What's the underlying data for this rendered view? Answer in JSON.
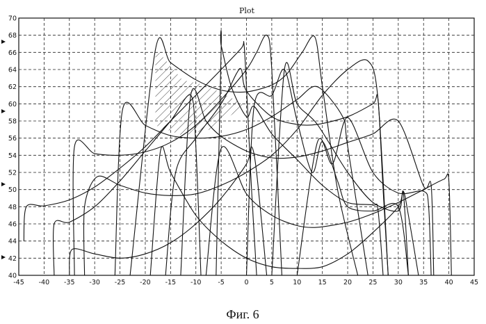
{
  "figure": {
    "caption": "Фиг. 6"
  },
  "chart_data": {
    "type": "line",
    "title": "Plot",
    "xlabel": "",
    "ylabel": "",
    "xlim": [
      -45,
      45
    ],
    "ylim": [
      40,
      70
    ],
    "x_ticks": [
      -45,
      -40,
      -35,
      -30,
      -25,
      -20,
      -15,
      -10,
      -5,
      0,
      5,
      10,
      15,
      20,
      25,
      30,
      35,
      40,
      45
    ],
    "y_ticks": [
      40,
      42,
      44,
      46,
      48,
      50,
      52,
      54,
      56,
      58,
      60,
      62,
      64,
      66,
      68,
      70
    ],
    "grid": true,
    "grid_style": "dashed",
    "line_color": "#111111",
    "hatched_region": {
      "x_range": [
        -18,
        0
      ],
      "y_range": [
        56,
        66.5
      ]
    },
    "series": [
      {
        "points": [
          [
            -44,
            44
          ],
          [
            -43.5,
            48
          ],
          [
            -40,
            48.1
          ],
          [
            -35,
            48.8
          ],
          [
            -30,
            50.3
          ],
          [
            -25,
            52.5
          ],
          [
            -20,
            55
          ],
          [
            -15,
            58
          ],
          [
            -10,
            61
          ],
          [
            -5,
            64
          ],
          [
            -1,
            66.5
          ],
          [
            -0.5,
            67
          ],
          [
            0,
            62
          ],
          [
            1,
            50
          ],
          [
            2,
            40
          ]
        ]
      },
      {
        "points": [
          [
            -38,
            40
          ],
          [
            -38,
            46
          ],
          [
            -35,
            46.2
          ],
          [
            -30,
            48
          ],
          [
            -25,
            51
          ],
          [
            -20,
            54.5
          ],
          [
            -15,
            58
          ],
          [
            -11,
            61
          ],
          [
            -10,
            55
          ],
          [
            -9,
            40
          ]
        ]
      },
      {
        "points": [
          [
            -35,
            40
          ],
          [
            -34.5,
            43
          ],
          [
            -30,
            42.5
          ],
          [
            -25,
            42
          ],
          [
            -20,
            42.5
          ],
          [
            -15,
            43.8
          ],
          [
            -10,
            46
          ],
          [
            -5,
            49
          ],
          [
            0,
            53
          ],
          [
            1,
            55
          ],
          [
            2,
            52
          ],
          [
            4,
            40
          ]
        ]
      },
      {
        "points": [
          [
            -34,
            40
          ],
          [
            -34,
            55
          ],
          [
            -30,
            54.2
          ],
          [
            -25,
            54
          ],
          [
            -20,
            54.4
          ],
          [
            -15,
            55.5
          ],
          [
            -10,
            57.5
          ],
          [
            -5,
            60.5
          ],
          [
            0,
            64
          ],
          [
            2,
            66
          ],
          [
            4,
            68
          ],
          [
            5,
            64
          ],
          [
            7,
            40
          ]
        ]
      },
      {
        "points": [
          [
            -32,
            40
          ],
          [
            -32,
            48
          ],
          [
            -29.5,
            51.5
          ],
          [
            -25,
            50.5
          ],
          [
            -20,
            49.6
          ],
          [
            -15,
            49.3
          ],
          [
            -10,
            49.5
          ],
          [
            -5,
            50.5
          ],
          [
            0,
            52
          ],
          [
            5,
            54
          ],
          [
            10,
            57
          ],
          [
            15,
            61
          ],
          [
            20,
            64
          ],
          [
            24,
            65
          ],
          [
            26,
            60.5
          ],
          [
            28,
            40
          ]
        ]
      },
      {
        "points": [
          [
            -26,
            40
          ],
          [
            -24.5,
            59.3
          ],
          [
            -20,
            57.5
          ],
          [
            -15,
            56.3
          ],
          [
            -10,
            56
          ],
          [
            -5,
            56.2
          ],
          [
            0,
            57
          ],
          [
            5,
            58.5
          ],
          [
            10,
            60.5
          ],
          [
            14,
            62
          ],
          [
            19,
            58.5
          ],
          [
            20,
            55
          ],
          [
            24,
            40
          ]
        ]
      },
      {
        "points": [
          [
            -23,
            40
          ],
          [
            -18,
            66.3
          ],
          [
            -15,
            64.8
          ],
          [
            -10,
            62.8
          ],
          [
            -5,
            61.6
          ],
          [
            0,
            61.4
          ],
          [
            5,
            62.2
          ],
          [
            8,
            63.5
          ],
          [
            11,
            66
          ],
          [
            13.5,
            67.8
          ],
          [
            15,
            62
          ],
          [
            18,
            50
          ],
          [
            22,
            40
          ]
        ]
      },
      {
        "points": [
          [
            -19,
            40
          ],
          [
            -17,
            54.5
          ],
          [
            -15,
            52
          ],
          [
            -10,
            47
          ],
          [
            -5,
            44
          ],
          [
            0,
            42
          ],
          [
            5,
            41
          ],
          [
            10,
            40.8
          ],
          [
            15,
            41
          ],
          [
            20,
            42.5
          ],
          [
            25,
            45
          ],
          [
            30,
            48
          ],
          [
            31,
            49.8
          ],
          [
            32,
            47
          ],
          [
            34,
            40
          ]
        ]
      },
      {
        "points": [
          [
            -16,
            40
          ],
          [
            -14,
            52
          ],
          [
            -10,
            56
          ],
          [
            -5,
            60
          ],
          [
            -2,
            63.5
          ],
          [
            -1,
            64
          ],
          [
            0,
            61.5
          ],
          [
            5,
            58.5
          ],
          [
            10,
            57.6
          ],
          [
            14,
            57.6
          ],
          [
            20,
            58.5
          ],
          [
            25,
            60
          ],
          [
            26,
            60.5
          ],
          [
            27,
            50
          ],
          [
            28,
            40
          ]
        ]
      },
      {
        "points": [
          [
            -13,
            40
          ],
          [
            -11,
            61
          ],
          [
            -8,
            58
          ],
          [
            -5,
            56.2
          ],
          [
            0,
            54.5
          ],
          [
            5,
            53.7
          ],
          [
            10,
            53.8
          ],
          [
            15,
            54.5
          ],
          [
            20,
            55.5
          ],
          [
            25,
            56.5
          ],
          [
            30,
            58
          ],
          [
            35,
            50.4
          ],
          [
            36.5,
            50.5
          ],
          [
            37,
            40
          ]
        ]
      },
      {
        "points": [
          [
            -8,
            40
          ],
          [
            -5,
            54.8
          ],
          [
            0,
            49.5
          ],
          [
            5,
            47
          ],
          [
            10,
            45.8
          ],
          [
            14,
            45.6
          ],
          [
            20,
            46.2
          ],
          [
            25,
            47.2
          ],
          [
            30,
            48.5
          ],
          [
            35,
            50
          ],
          [
            39,
            51.2
          ],
          [
            40,
            51
          ],
          [
            40.5,
            40
          ]
        ]
      },
      {
        "points": [
          [
            -6,
            40
          ],
          [
            -5,
            66.5
          ],
          [
            -5,
            66.8
          ],
          [
            -3,
            62
          ],
          [
            0,
            58.5
          ],
          [
            1.5,
            59.7
          ],
          [
            5,
            56.5
          ],
          [
            10,
            53.5
          ],
          [
            15,
            50.5
          ],
          [
            20,
            48.5
          ],
          [
            25,
            48.2
          ],
          [
            26,
            47.6
          ],
          [
            27,
            40
          ]
        ]
      },
      {
        "points": [
          [
            0,
            40
          ],
          [
            1.5,
            59.7
          ],
          [
            5,
            61
          ],
          [
            7.5,
            64
          ],
          [
            10,
            58
          ],
          [
            13,
            52
          ],
          [
            15,
            55.6
          ],
          [
            18,
            51
          ],
          [
            20,
            48
          ],
          [
            25,
            47.5
          ],
          [
            30,
            48
          ],
          [
            32,
            40
          ]
        ]
      },
      {
        "points": [
          [
            5,
            40
          ],
          [
            7.5,
            64
          ],
          [
            10,
            60
          ],
          [
            14,
            57.6
          ],
          [
            20,
            52
          ],
          [
            25,
            48.5
          ],
          [
            30,
            47.5
          ],
          [
            31,
            49.6
          ],
          [
            32,
            40
          ]
        ]
      },
      {
        "points": [
          [
            10,
            40
          ],
          [
            14,
            55.5
          ],
          [
            17,
            53
          ],
          [
            20,
            58.4
          ],
          [
            25,
            52
          ],
          [
            30,
            49.6
          ],
          [
            35,
            49.8
          ],
          [
            36,
            48
          ],
          [
            36.5,
            40
          ]
        ]
      }
    ]
  }
}
